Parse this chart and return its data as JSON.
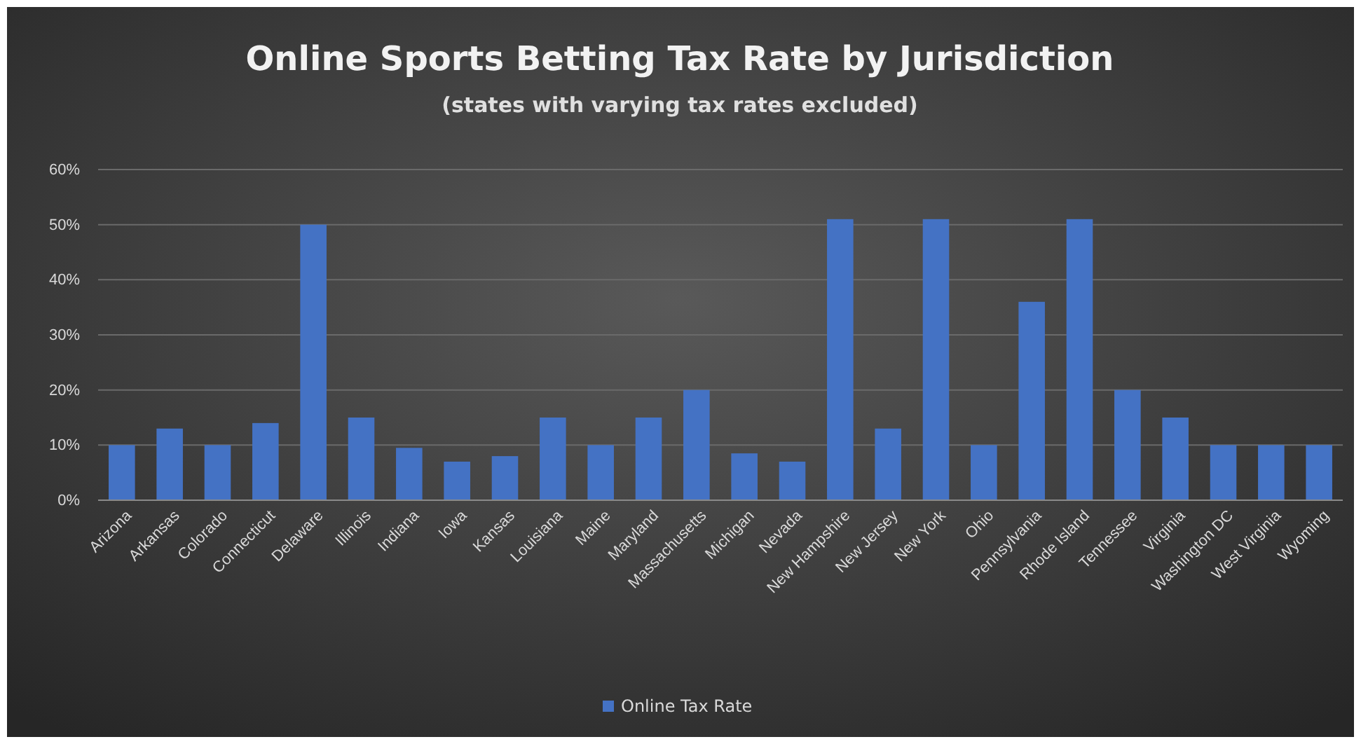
{
  "chart_data": {
    "type": "bar",
    "title": "Online Sports Betting Tax Rate by Jurisdiction",
    "subtitle": "(states with varying tax rates excluded)",
    "categories": [
      "Arizona",
      "Arkansas",
      "Colorado",
      "Connecticut",
      "Delaware",
      "Illinois",
      "Indiana",
      "Iowa",
      "Kansas",
      "Louisiana",
      "Maine",
      "Maryland",
      "Massachusetts",
      "Michigan",
      "Nevada",
      "New Hampshire",
      "New Jersey",
      "New York",
      "Ohio",
      "Pennsylvania",
      "Rhode Island",
      "Tennessee",
      "Virginia",
      "Washington DC",
      "West Virginia",
      "Wyoming"
    ],
    "series": [
      {
        "name": "Online Tax Rate",
        "color": "#4472c4",
        "values": [
          10,
          13,
          10,
          14,
          50,
          15,
          9.5,
          7,
          8,
          15,
          10,
          15,
          20,
          8.5,
          7,
          51,
          13,
          51,
          10,
          36,
          51,
          20,
          15,
          10,
          10,
          10
        ]
      }
    ],
    "ylim": [
      0,
      60
    ],
    "yticks": [
      {
        "value": 0,
        "label": "0%"
      },
      {
        "value": 10,
        "label": "10%"
      },
      {
        "value": 20,
        "label": "20%"
      },
      {
        "value": 30,
        "label": "30%"
      },
      {
        "value": 40,
        "label": "40%"
      },
      {
        "value": 50,
        "label": "50%"
      },
      {
        "value": 60,
        "label": "60%"
      }
    ],
    "grid": "y",
    "legend": "bottom"
  }
}
